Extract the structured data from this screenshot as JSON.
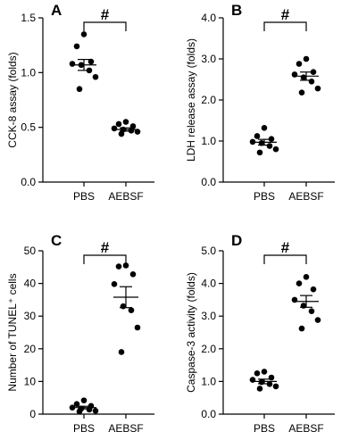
{
  "chart_data": [
    {
      "panel": "A",
      "type": "scatter",
      "ylabel": "CCK-8 assay (folds)",
      "ylim": [
        0,
        1.5
      ],
      "yticks": [
        "0.0",
        "0.5",
        "1.0",
        "1.5"
      ],
      "categories": [
        "PBS",
        "AEBSF"
      ],
      "significance": "#",
      "groups": [
        {
          "category": "PBS",
          "values": [
            1.35,
            1.24,
            1.1,
            1.08,
            1.07,
            1.02,
            0.96,
            0.85
          ],
          "mean": 1.07,
          "sem": 0.05
        },
        {
          "category": "AEBSF",
          "values": [
            0.55,
            0.53,
            0.51,
            0.49,
            0.48,
            0.47,
            0.46,
            0.44
          ],
          "mean": 0.48,
          "sem": 0.015
        }
      ]
    },
    {
      "panel": "B",
      "type": "scatter",
      "ylabel": "LDH release assay (folds)",
      "ylim": [
        0,
        4.0
      ],
      "yticks": [
        "0.0",
        "1.0",
        "2.0",
        "3.0",
        "4.0"
      ],
      "categories": [
        "PBS",
        "AEBSF"
      ],
      "significance": "#",
      "groups": [
        {
          "category": "PBS",
          "values": [
            1.32,
            1.12,
            1.05,
            0.98,
            0.95,
            0.88,
            0.8,
            0.72
          ],
          "mean": 0.97,
          "sem": 0.07
        },
        {
          "category": "AEBSF",
          "values": [
            3.0,
            2.88,
            2.68,
            2.62,
            2.55,
            2.45,
            2.28,
            2.18
          ],
          "mean": 2.58,
          "sem": 0.1
        }
      ]
    },
    {
      "panel": "C",
      "type": "scatter",
      "ylabel": "Number of TUNEL⁺ cells",
      "ylim": [
        0,
        50
      ],
      "yticks": [
        "0",
        "10",
        "20",
        "30",
        "40",
        "50"
      ],
      "categories": [
        "PBS",
        "AEBSF"
      ],
      "significance": "#",
      "groups": [
        {
          "category": "PBS",
          "values": [
            4.2,
            3.1,
            2.5,
            2.0,
            1.7,
            1.4,
            1.0,
            0.8
          ],
          "mean": 2.0,
          "sem": 0.4
        },
        {
          "category": "AEBSF",
          "values": [
            45.5,
            45.2,
            42.8,
            39.8,
            33.0,
            31.8,
            26.5,
            19.0
          ],
          "mean": 35.8,
          "sem": 3.2
        }
      ]
    },
    {
      "panel": "D",
      "type": "scatter",
      "ylabel": "Caspase-3 activity (folds)",
      "ylim": [
        0,
        5.0
      ],
      "yticks": [
        "0.0",
        "1.0",
        "2.0",
        "3.0",
        "4.0",
        "5.0"
      ],
      "categories": [
        "PBS",
        "AEBSF"
      ],
      "significance": "#",
      "groups": [
        {
          "category": "PBS",
          "values": [
            1.3,
            1.25,
            1.12,
            1.05,
            0.98,
            0.92,
            0.85,
            0.78
          ],
          "mean": 1.0,
          "sem": 0.07
        },
        {
          "category": "AEBSF",
          "values": [
            4.2,
            4.0,
            3.82,
            3.5,
            3.32,
            3.15,
            2.88,
            2.62
          ],
          "mean": 3.45,
          "sem": 0.18
        }
      ]
    }
  ]
}
